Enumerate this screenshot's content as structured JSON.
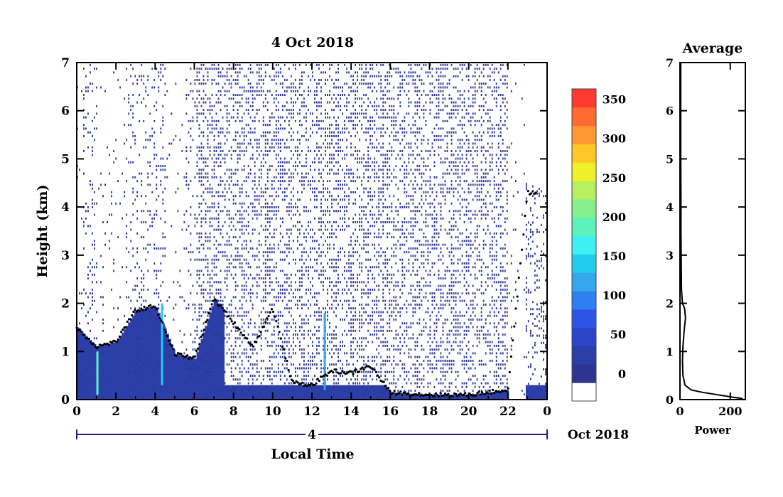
{
  "chart_data": [
    {
      "type": "heatmap",
      "title": "4 Oct 2018",
      "xlabel": "Local Time",
      "ylabel": "Height (km)",
      "xlim": [
        0,
        24
      ],
      "ylim": [
        0,
        7
      ],
      "x_ticks": [
        "0",
        "2",
        "4",
        "6",
        "8",
        "10",
        "12",
        "14",
        "16",
        "18",
        "20",
        "22",
        "0"
      ],
      "y_ticks": [
        "0",
        "1",
        "2",
        "3",
        "4",
        "5",
        "6",
        "7"
      ],
      "date_axis": {
        "day": "4",
        "month_year": "Oct 2018"
      },
      "colorbar": {
        "ticks": [
          "0",
          "50",
          "100",
          "150",
          "200",
          "250",
          "300",
          "350"
        ],
        "levels": [
          0,
          25,
          50,
          75,
          100,
          125,
          150,
          175,
          200,
          225,
          250,
          275,
          300,
          325,
          350,
          375
        ],
        "colors": [
          "#ffffff",
          "#2d3590",
          "#2c3ea8",
          "#2b46c8",
          "#2c55e6",
          "#2f7ff2",
          "#34a8ea",
          "#22ccee",
          "#3ef0f2",
          "#5cf2bc",
          "#86f08a",
          "#b8f060",
          "#f0f02a",
          "#ffc828",
          "#ff9830",
          "#ff6a30",
          "#ff3a30"
        ],
        "range": [
          0,
          375
        ]
      },
      "boundary_layer_height_km": [
        [
          0,
          1.5
        ],
        [
          1,
          1.1
        ],
        [
          2,
          1.2
        ],
        [
          3,
          1.85
        ],
        [
          4,
          1.95
        ],
        [
          5,
          0.95
        ],
        [
          6,
          0.85
        ],
        [
          7,
          2.1
        ],
        [
          8,
          1.6
        ],
        [
          9,
          1.1
        ],
        [
          10,
          1.9
        ],
        [
          11,
          0.35
        ],
        [
          12,
          0.3
        ],
        [
          13,
          0.6
        ],
        [
          14,
          0.55
        ],
        [
          15,
          0.7
        ],
        [
          16,
          0.15
        ],
        [
          17,
          0.12
        ],
        [
          18,
          0.1
        ],
        [
          19,
          0.1
        ],
        [
          20,
          0.1
        ],
        [
          21,
          0.15
        ],
        [
          22,
          0.2
        ],
        [
          23,
          4.3
        ]
      ]
    },
    {
      "type": "line",
      "title": "Average",
      "xlabel": "Power",
      "ylabel": "",
      "xlim": [
        0,
        260
      ],
      "ylim": [
        0,
        7
      ],
      "x_ticks": [
        "0",
        "200"
      ],
      "y_ticks": [
        "0",
        "1",
        "2",
        "3",
        "4",
        "5",
        "6",
        "7"
      ],
      "series": [
        {
          "x": [
            250,
            210,
            150,
            90,
            45,
            20,
            12,
            10,
            12,
            16,
            22,
            18,
            10,
            6,
            5,
            4,
            4,
            3,
            3,
            3,
            3
          ],
          "y": [
            0.02,
            0.05,
            0.1,
            0.15,
            0.2,
            0.3,
            0.5,
            0.8,
            1.1,
            1.4,
            1.7,
            1.9,
            2.0,
            2.3,
            2.8,
            3.5,
            4.2,
            5.0,
            5.8,
            6.5,
            7.0
          ]
        }
      ]
    }
  ]
}
